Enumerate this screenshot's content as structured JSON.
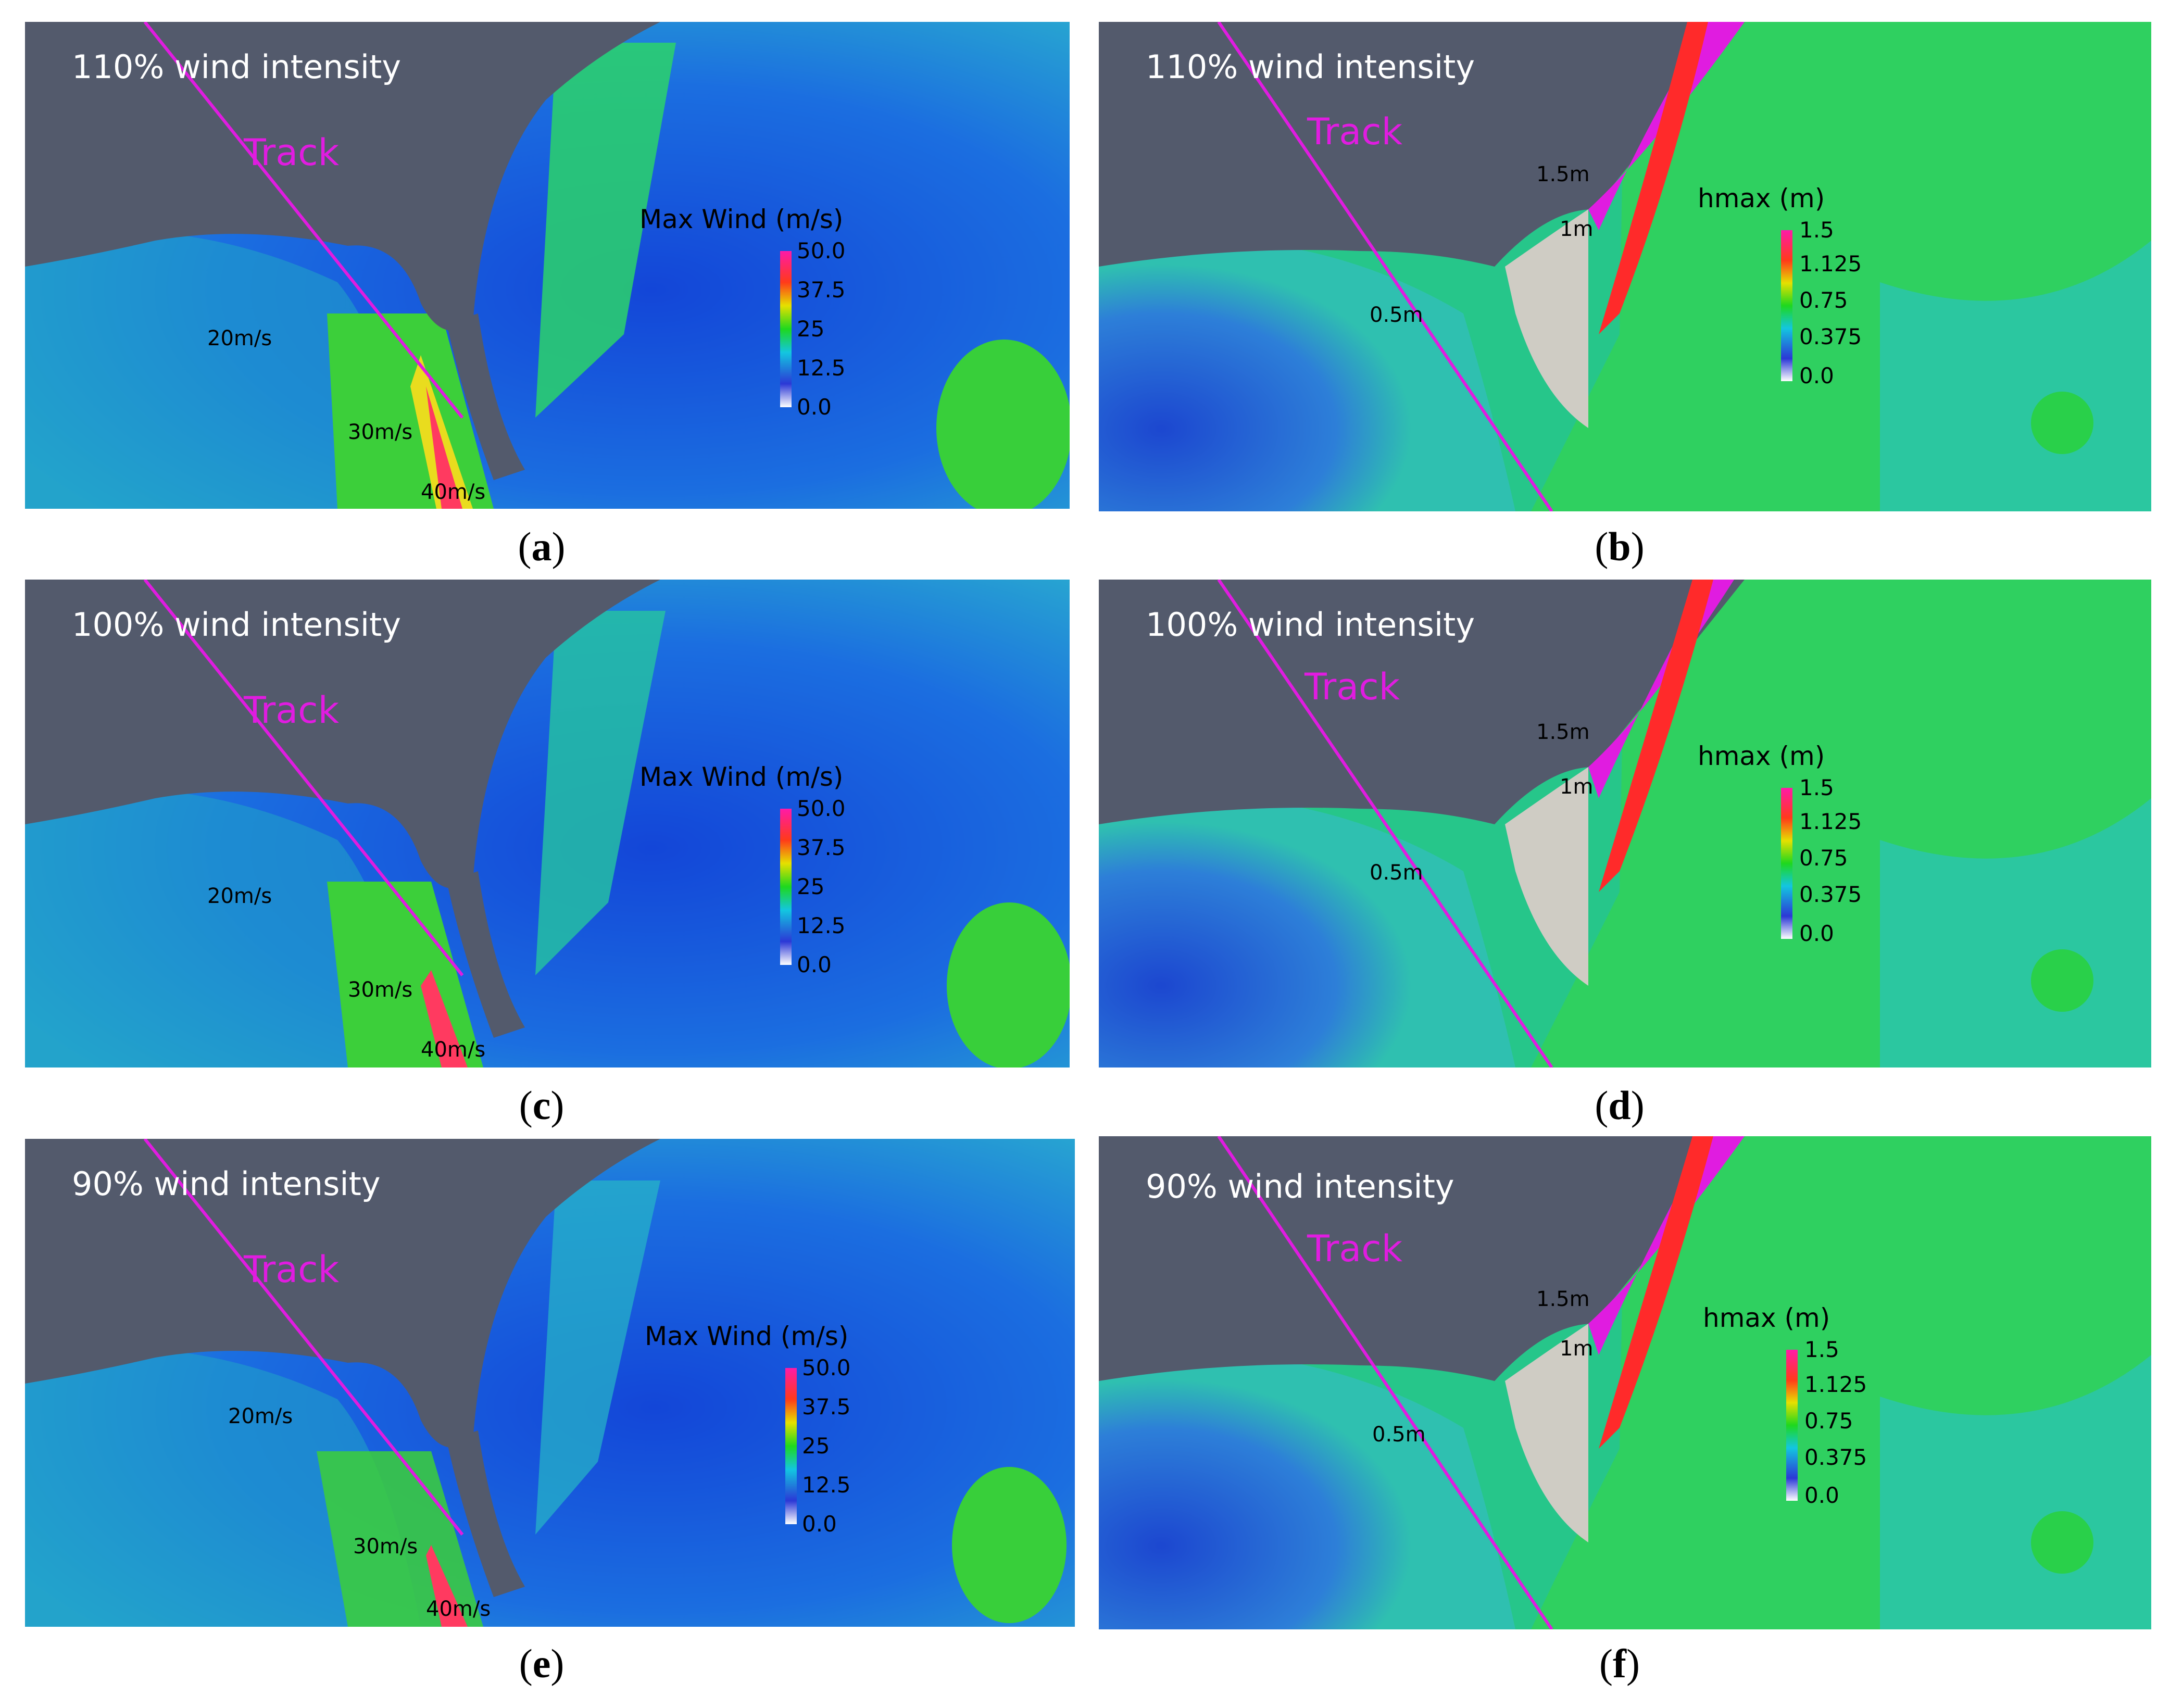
{
  "colors": {
    "land": "#535a6c",
    "track": "#e01ce0",
    "sand": "#cfccc4"
  },
  "panels": [
    {
      "id": "a",
      "caption_open": "(",
      "caption_letter": "a",
      "caption_close": ")",
      "intensity": "110% wind intensity",
      "track": "Track",
      "legend_title": "Max Wind (m/s)",
      "ticks": [
        "50.0",
        "37.5",
        "25",
        "12.5",
        "0.0"
      ],
      "contours": [
        "20m/s",
        "30m/s",
        "40m/s"
      ]
    },
    {
      "id": "b",
      "caption_open": "(",
      "caption_letter": "b",
      "caption_close": ")",
      "intensity": "110% wind intensity",
      "track": "Track",
      "legend_title": "hmax (m)",
      "ticks": [
        "1.5",
        "1.125",
        "0.75",
        "0.375",
        "0.0"
      ],
      "contours": [
        "1.5m",
        "1m",
        "0.5m"
      ]
    },
    {
      "id": "c",
      "caption_open": "(",
      "caption_letter": "c",
      "caption_close": ")",
      "intensity": "100% wind intensity",
      "track": "Track",
      "legend_title": "Max Wind (m/s)",
      "ticks": [
        "50.0",
        "37.5",
        "25",
        "12.5",
        "0.0"
      ],
      "contours": [
        "20m/s",
        "30m/s",
        "40m/s"
      ]
    },
    {
      "id": "d",
      "caption_open": "(",
      "caption_letter": "d",
      "caption_close": ")",
      "intensity": "100% wind intensity",
      "track": "Track",
      "legend_title": "hmax (m)",
      "ticks": [
        "1.5",
        "1.125",
        "0.75",
        "0.375",
        "0.0"
      ],
      "contours": [
        "1.5m",
        "1m",
        "0.5m"
      ]
    },
    {
      "id": "e",
      "caption_open": "(",
      "caption_letter": "e",
      "caption_close": ")",
      "intensity": "90% wind intensity",
      "track": "Track",
      "legend_title": "Max Wind (m/s)",
      "ticks": [
        "50.0",
        "37.5",
        "25",
        "12.5",
        "0.0"
      ],
      "contours": [
        "20m/s",
        "30m/s",
        "40m/s"
      ]
    },
    {
      "id": "f",
      "caption_open": "(",
      "caption_letter": "f",
      "caption_close": ")",
      "intensity": "90% wind intensity",
      "track": "Track",
      "legend_title": "hmax (m)",
      "ticks": [
        "1.5",
        "1.125",
        "0.75",
        "0.375",
        "0.0"
      ],
      "contours": [
        "1.5m",
        "1m",
        "0.5m"
      ]
    }
  ]
}
